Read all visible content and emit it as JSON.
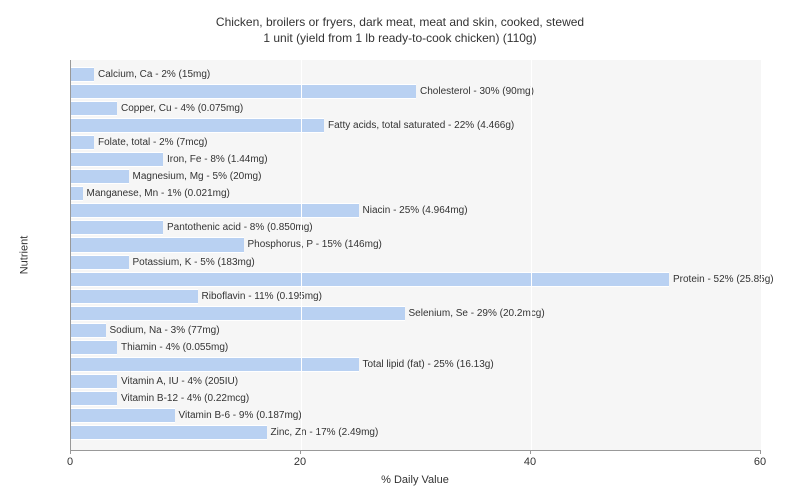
{
  "title_line1": "Chicken, broilers or fryers, dark meat, meat and skin, cooked, stewed",
  "title_line2": "1 unit (yield from 1 lb ready-to-cook chicken) (110g)",
  "x_axis_title": "% Daily Value",
  "y_axis_title": "Nutrient",
  "chart": {
    "type": "bar-horizontal",
    "xlim_max": 60,
    "xtick_step": 20,
    "background_color": "#f6f6f6",
    "grid_color": "#ffffff",
    "bar_color": "#b9d1f2",
    "bar_outline": "#ffffff",
    "text_color": "#333333",
    "axis_color": "#999999",
    "label_fontsize": 10,
    "tick_fontsize": 11,
    "title_fontsize": 12,
    "xticks": [
      {
        "value": 0,
        "label": "0"
      },
      {
        "value": 20,
        "label": "20"
      },
      {
        "value": 40,
        "label": "40"
      },
      {
        "value": 60,
        "label": "60"
      }
    ],
    "bars": [
      {
        "value": 2,
        "label": "Calcium, Ca - 2% (15mg)"
      },
      {
        "value": 30,
        "label": "Cholesterol - 30% (90mg)"
      },
      {
        "value": 4,
        "label": "Copper, Cu - 4% (0.075mg)"
      },
      {
        "value": 22,
        "label": "Fatty acids, total saturated - 22% (4.466g)"
      },
      {
        "value": 2,
        "label": "Folate, total - 2% (7mcg)"
      },
      {
        "value": 8,
        "label": "Iron, Fe - 8% (1.44mg)"
      },
      {
        "value": 5,
        "label": "Magnesium, Mg - 5% (20mg)"
      },
      {
        "value": 1,
        "label": "Manganese, Mn - 1% (0.021mg)"
      },
      {
        "value": 25,
        "label": "Niacin - 25% (4.964mg)"
      },
      {
        "value": 8,
        "label": "Pantothenic acid - 8% (0.850mg)"
      },
      {
        "value": 15,
        "label": "Phosphorus, P - 15% (146mg)"
      },
      {
        "value": 5,
        "label": "Potassium, K - 5% (183mg)"
      },
      {
        "value": 52,
        "label": "Protein - 52% (25.85g)"
      },
      {
        "value": 11,
        "label": "Riboflavin - 11% (0.195mg)"
      },
      {
        "value": 29,
        "label": "Selenium, Se - 29% (20.2mcg)"
      },
      {
        "value": 3,
        "label": "Sodium, Na - 3% (77mg)"
      },
      {
        "value": 4,
        "label": "Thiamin - 4% (0.055mg)"
      },
      {
        "value": 25,
        "label": "Total lipid (fat) - 25% (16.13g)"
      },
      {
        "value": 4,
        "label": "Vitamin A, IU - 4% (205IU)"
      },
      {
        "value": 4,
        "label": "Vitamin B-12 - 4% (0.22mcg)"
      },
      {
        "value": 9,
        "label": "Vitamin B-6 - 9% (0.187mg)"
      },
      {
        "value": 17,
        "label": "Zinc, Zn - 17% (2.49mg)"
      }
    ]
  }
}
